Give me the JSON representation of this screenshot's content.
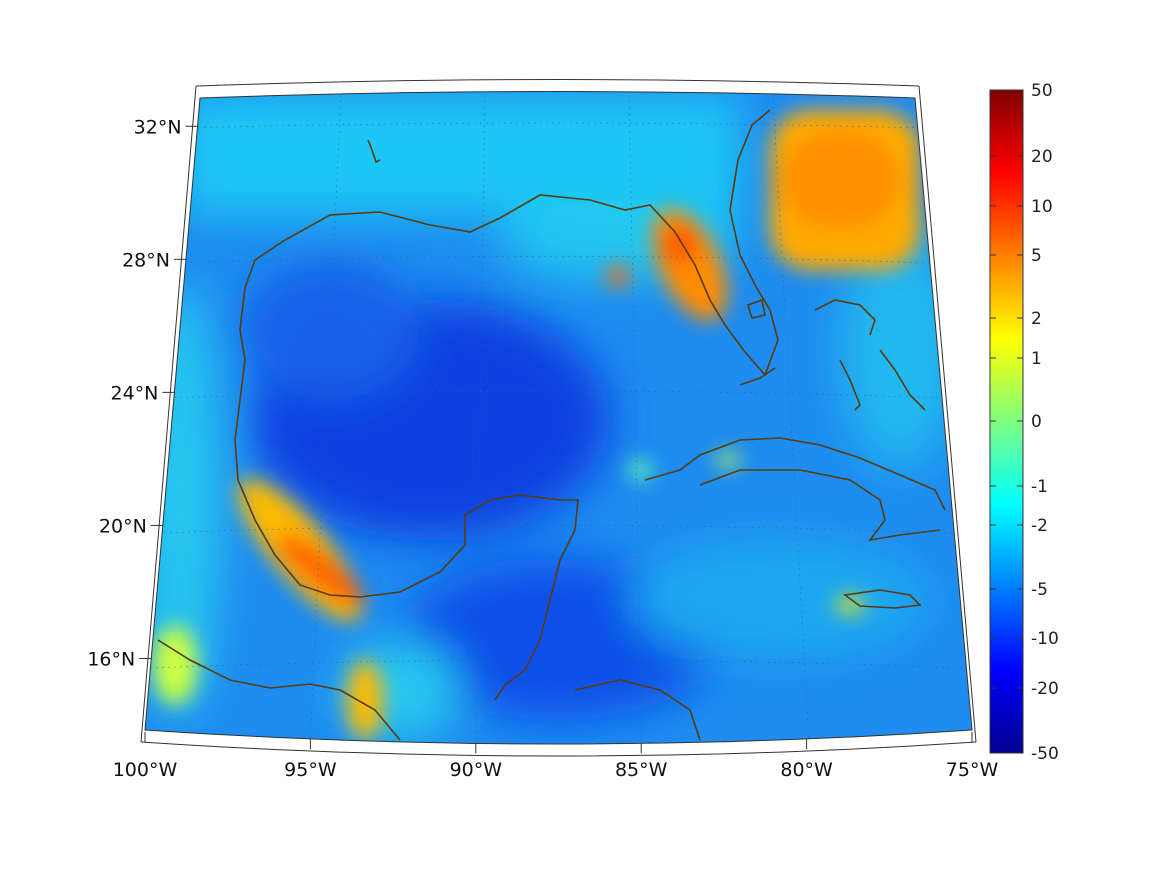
{
  "map": {
    "lon_range": [
      -100,
      -75
    ],
    "lat_range": [
      14,
      33
    ],
    "lon_ticks": [
      {
        "value": -100,
        "label": "100°W"
      },
      {
        "value": -95,
        "label": "95°W"
      },
      {
        "value": -90,
        "label": "90°W"
      },
      {
        "value": -85,
        "label": "85°W"
      },
      {
        "value": -80,
        "label": "80°W"
      },
      {
        "value": -75,
        "label": "75°W"
      }
    ],
    "lat_ticks": [
      {
        "value": 32,
        "label": "32°N"
      },
      {
        "value": 28,
        "label": "28°N"
      },
      {
        "value": 24,
        "label": "24°N"
      },
      {
        "value": 20,
        "label": "20°N"
      },
      {
        "value": 16,
        "label": "16°N"
      }
    ],
    "coastline_color": "#5a3a10",
    "grid": true
  },
  "colorbar": {
    "ticks": [
      {
        "value": 50,
        "label": "50"
      },
      {
        "value": 20,
        "label": "20"
      },
      {
        "value": 10,
        "label": "10"
      },
      {
        "value": 5,
        "label": "5"
      },
      {
        "value": 2,
        "label": "2"
      },
      {
        "value": 1,
        "label": "1"
      },
      {
        "value": 0,
        "label": "0"
      },
      {
        "value": -1,
        "label": "-1"
      },
      {
        "value": -2,
        "label": "-2"
      },
      {
        "value": -5,
        "label": "-5"
      },
      {
        "value": -10,
        "label": "-10"
      },
      {
        "value": -20,
        "label": "-20"
      },
      {
        "value": -50,
        "label": "-50"
      }
    ],
    "colormap": "jet"
  }
}
